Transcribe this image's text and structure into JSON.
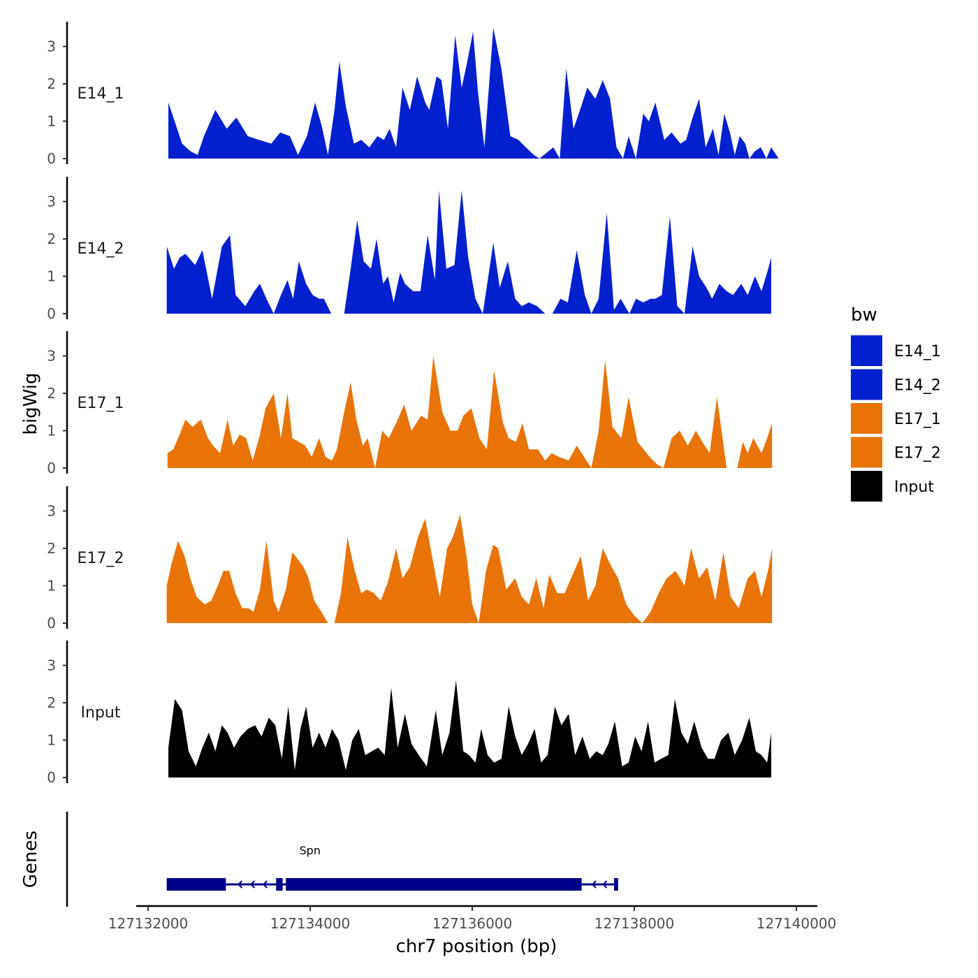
{
  "chart_data": {
    "type": "area",
    "title": "",
    "xlabel": "chr7 position (bp)",
    "ylabel": "bigWig",
    "genes_label": "Genes",
    "xlim": [
      127132000,
      127140000
    ],
    "x_ticks": [
      127132000,
      127134000,
      127136000,
      127138000,
      127140000
    ],
    "x_tick_labels": [
      "127132000",
      "127134000",
      "127136000",
      "127138000",
      "127140000"
    ],
    "ylim": [
      0,
      3.6
    ],
    "y_ticks": [
      0,
      1,
      2,
      3
    ],
    "y_tick_labels": [
      "0",
      "1",
      "2",
      "3"
    ],
    "legend": {
      "title": "bw",
      "position": "right",
      "entries": [
        {
          "label": "E14_1",
          "color": "#0320CF"
        },
        {
          "label": "E14_2",
          "color": "#0320CF"
        },
        {
          "label": "E17_1",
          "color": "#E87408"
        },
        {
          "label": "E17_2",
          "color": "#E87408"
        },
        {
          "label": "Input",
          "color": "#000000"
        }
      ]
    },
    "series": [
      {
        "name": "E14_1",
        "color": "#0320CF",
        "x": [
          127132250,
          127132420,
          127132520,
          127132610,
          127132690,
          127132830,
          127132970,
          127133090,
          127133230,
          127133370,
          127133520,
          127133630,
          127133750,
          127133850,
          127133960,
          127134060,
          127134140,
          127134220,
          127134300,
          127134360,
          127134440,
          127134540,
          127134630,
          127134730,
          127134830,
          127134910,
          127134980,
          127135060,
          127135140,
          127135230,
          127135320,
          127135420,
          127135470,
          127135560,
          127135620,
          127135700,
          127135790,
          127135870,
          127135940,
          127136010,
          127136070,
          127136150,
          127136260,
          127136360,
          127136470,
          127136570,
          127136660,
          127136760,
          127136830,
          127137000,
          127137080,
          127137160,
          127137250,
          127137330,
          127137420,
          127137520,
          127137610,
          127137700,
          127137780,
          127137860,
          127137930,
          127138020,
          127138110,
          127138180,
          127138260,
          127138370,
          127138460,
          127138570,
          127138640,
          127138720,
          127138800,
          127138880,
          127138970,
          127139040,
          127139110,
          127139180,
          127139240,
          127139300,
          127139370,
          127139420,
          127139490,
          127139560,
          127139630,
          127139690,
          127139780
        ],
        "values": [
          1.5,
          0.4,
          0.2,
          0.1,
          0.6,
          1.3,
          0.8,
          1.1,
          0.6,
          0.5,
          0.4,
          0.7,
          0.6,
          0.1,
          0.6,
          1.5,
          0.9,
          0.1,
          1.3,
          2.6,
          1.4,
          0.4,
          0.5,
          0.3,
          0.6,
          0.5,
          0.8,
          0.3,
          1.9,
          1.3,
          2.2,
          1.5,
          1.3,
          2.2,
          2.1,
          0.8,
          3.3,
          1.9,
          2.6,
          3.4,
          1.8,
          0.3,
          3.5,
          2.4,
          0.6,
          0.5,
          0.3,
          0.1,
          0.0,
          0.3,
          0.0,
          2.4,
          0.8,
          1.3,
          1.9,
          1.6,
          2.1,
          1.6,
          0.3,
          0.0,
          0.6,
          0.0,
          1.2,
          1.0,
          1.5,
          0.5,
          0.7,
          0.4,
          0.5,
          1.1,
          1.6,
          0.3,
          0.8,
          0.1,
          1.2,
          0.7,
          0.1,
          0.6,
          0.4,
          0.0,
          0.2,
          0.3,
          0.0,
          0.3,
          0.0
        ]
      },
      {
        "name": "E14_2",
        "color": "#0320CF",
        "x": [
          127132230,
          127132320,
          127132390,
          127132460,
          127132580,
          127132670,
          127132790,
          127132910,
          127133010,
          127133080,
          127133200,
          127133310,
          127133380,
          127133460,
          127133550,
          127133640,
          127133720,
          127133790,
          127133860,
          127133950,
          127134030,
          127134110,
          127134170,
          127134260,
          127134340,
          127134420,
          127134500,
          127134580,
          127134660,
          127134750,
          127134820,
          127134900,
          127134960,
          127135030,
          127135110,
          127135170,
          127135270,
          127135360,
          127135450,
          127135540,
          127135590,
          127135680,
          127135780,
          127135870,
          127135950,
          127136040,
          127136130,
          127136260,
          127136340,
          127136440,
          127136530,
          127136610,
          127136700,
          127136800,
          127136900,
          127136990,
          127137090,
          127137180,
          127137290,
          127137390,
          127137470,
          127137560,
          127137660,
          127137750,
          127137830,
          127137940,
          127138020,
          127138110,
          127138200,
          127138260,
          127138340,
          127138440,
          127138530,
          127138620,
          127138720,
          127138800,
          127138890,
          127138960,
          127139050,
          127139140,
          127139220,
          127139320,
          127139400,
          127139490,
          127139570,
          127139640,
          127139690
        ],
        "values": [
          1.8,
          1.2,
          1.5,
          1.6,
          1.3,
          1.7,
          0.4,
          1.8,
          2.1,
          0.5,
          0.2,
          0.6,
          0.8,
          0.4,
          0.0,
          0.5,
          0.9,
          0.4,
          1.4,
          0.8,
          0.5,
          0.4,
          0.4,
          0.0,
          0.0,
          0.0,
          1.2,
          2.5,
          1.4,
          1.2,
          2.0,
          0.8,
          1.0,
          0.3,
          1.1,
          0.8,
          0.6,
          0.6,
          2.1,
          0.9,
          3.3,
          1.2,
          1.3,
          3.3,
          1.5,
          0.4,
          0.0,
          1.9,
          0.7,
          1.4,
          0.4,
          0.2,
          0.3,
          0.2,
          0.0,
          0.0,
          0.4,
          0.3,
          1.7,
          0.5,
          0.0,
          0.4,
          2.7,
          0.1,
          0.4,
          0.0,
          0.4,
          0.3,
          0.4,
          0.4,
          0.5,
          2.6,
          0.2,
          0.0,
          1.8,
          1.0,
          0.7,
          0.4,
          0.8,
          0.6,
          0.5,
          0.8,
          0.5,
          1.0,
          0.6,
          1.1,
          1.5
        ]
      },
      {
        "name": "E17_1",
        "color": "#E87408",
        "x": [
          127132240,
          127132310,
          127132390,
          127132460,
          127132550,
          127132650,
          127132740,
          127132800,
          127132890,
          127132980,
          127133050,
          127133130,
          127133210,
          127133290,
          127133370,
          127133450,
          127133550,
          127133640,
          127133720,
          127133780,
          127133860,
          127133940,
          127134020,
          127134110,
          127134190,
          127134270,
          127134330,
          127134420,
          127134500,
          127134570,
          127134650,
          127134710,
          127134800,
          127134890,
          127134970,
          127135060,
          127135160,
          127135250,
          127135370,
          127135450,
          127135520,
          127135630,
          127135730,
          127135820,
          127135890,
          127135990,
          127136090,
          127136180,
          127136270,
          127136380,
          127136450,
          127136540,
          127136620,
          127136700,
          127136810,
          127136900,
          127136980,
          127137070,
          127137190,
          127137290,
          127137380,
          127137470,
          127137560,
          127137640,
          127137730,
          127137840,
          127137930,
          127138040,
          127138190,
          127138280,
          127138360,
          127138460,
          127138560,
          127138660,
          127138760,
          127138840,
          127138930,
          127139020,
          127139140,
          127139270,
          127139340,
          127139400,
          127139470,
          127139570,
          127139640,
          127139700
        ],
        "values": [
          0.4,
          0.5,
          0.9,
          1.3,
          1.1,
          1.3,
          0.8,
          0.6,
          0.4,
          1.3,
          0.6,
          0.9,
          0.8,
          0.2,
          0.8,
          1.6,
          2.0,
          0.8,
          2.0,
          0.8,
          0.7,
          0.6,
          0.3,
          0.8,
          0.3,
          0.2,
          0.5,
          1.5,
          2.3,
          1.3,
          0.6,
          0.8,
          0.0,
          1.0,
          0.8,
          1.2,
          1.7,
          1.0,
          1.4,
          1.3,
          3.0,
          1.5,
          1.0,
          1.0,
          1.4,
          1.6,
          0.8,
          0.5,
          2.6,
          1.2,
          0.8,
          0.7,
          1.2,
          0.5,
          0.5,
          0.2,
          0.4,
          0.3,
          0.2,
          0.6,
          0.3,
          0.0,
          1.0,
          2.9,
          1.1,
          0.8,
          1.9,
          0.7,
          0.3,
          0.1,
          0.0,
          0.8,
          1.0,
          0.6,
          1.0,
          0.7,
          0.4,
          1.9,
          0.0,
          0.0,
          0.7,
          0.4,
          0.8,
          0.4,
          0.8,
          1.2
        ]
      },
      {
        "name": "E17_2",
        "color": "#E87408",
        "x": [
          127132230,
          127132290,
          127132370,
          127132450,
          127132520,
          127132600,
          127132700,
          127132780,
          127132860,
          127132930,
          127133000,
          127133080,
          127133160,
          127133240,
          127133300,
          127133380,
          127133460,
          127133550,
          127133610,
          127133700,
          127133780,
          127133850,
          127133920,
          127133980,
          127134050,
          127134140,
          127134220,
          127134300,
          127134380,
          127134460,
          127134550,
          127134630,
          127134700,
          127134790,
          127134870,
          127134960,
          127135060,
          127135140,
          127135230,
          127135330,
          127135420,
          127135520,
          127135600,
          127135690,
          127135760,
          127135850,
          127135930,
          127136000,
          127136080,
          127136170,
          127136260,
          127136320,
          127136420,
          127136530,
          127136610,
          127136700,
          127136790,
          127136880,
          127136950,
          127137050,
          127137140,
          127137240,
          127137340,
          127137430,
          127137520,
          127137610,
          127137720,
          127137800,
          127137900,
          127138000,
          127138100,
          127138200,
          127138300,
          127138400,
          127138510,
          127138620,
          127138700,
          127138800,
          127138900,
          127139000,
          127139100,
          127139190,
          127139290,
          127139400,
          127139490,
          127139570,
          127139650,
          127139700
        ],
        "values": [
          1.0,
          1.6,
          2.2,
          1.8,
          1.2,
          0.7,
          0.5,
          0.6,
          1.0,
          1.4,
          1.4,
          0.8,
          0.4,
          0.4,
          0.3,
          0.9,
          2.2,
          0.6,
          0.3,
          0.9,
          1.9,
          1.7,
          1.5,
          1.2,
          0.6,
          0.3,
          0.0,
          0.0,
          0.8,
          2.3,
          1.4,
          0.8,
          0.9,
          0.8,
          0.6,
          1.1,
          2.0,
          1.2,
          1.5,
          2.3,
          2.8,
          1.6,
          0.7,
          2.0,
          2.3,
          2.9,
          1.8,
          0.5,
          0.0,
          1.4,
          2.1,
          2.0,
          0.9,
          1.2,
          0.7,
          0.5,
          1.2,
          0.4,
          1.3,
          0.8,
          0.8,
          1.3,
          1.8,
          0.6,
          1.0,
          2.0,
          1.5,
          1.2,
          0.5,
          0.2,
          0.0,
          0.3,
          0.8,
          1.2,
          1.4,
          1.0,
          2.0,
          1.2,
          1.5,
          0.6,
          1.9,
          0.7,
          0.4,
          1.2,
          1.4,
          0.7,
          1.4,
          2.0
        ]
      },
      {
        "name": "Input",
        "color": "#000000",
        "x": [
          127132250,
          127132330,
          127132420,
          127132500,
          127132590,
          127132670,
          127132750,
          127132830,
          127132910,
          127132980,
          127133060,
          127133140,
          127133230,
          127133320,
          127133400,
          127133490,
          127133570,
          127133650,
          127133730,
          127133810,
          127133880,
          127133950,
          127134030,
          127134110,
          127134190,
          127134270,
          127134350,
          127134440,
          127134520,
          127134600,
          127134680,
          127134760,
          127134840,
          127134920,
          127135000,
          127135080,
          127135170,
          127135250,
          127135340,
          127135440,
          127135550,
          127135630,
          127135720,
          127135800,
          127135890,
          127135960,
          127136040,
          127136110,
          127136190,
          127136270,
          127136360,
          127136450,
          127136530,
          127136610,
          127136690,
          127136770,
          127136850,
          127136930,
          127137020,
          127137100,
          127137190,
          127137270,
          127137360,
          127137450,
          127137530,
          127137610,
          127137680,
          127137760,
          127137850,
          127137930,
          127138010,
          127138090,
          127138170,
          127138250,
          127138330,
          127138420,
          127138500,
          127138580,
          127138660,
          127138740,
          127138830,
          127138910,
          127138990,
          127139070,
          127139160,
          127139240,
          127139330,
          127139420,
          127139500,
          127139570,
          127139640,
          127139690
        ],
        "values": [
          0.8,
          2.1,
          1.8,
          0.7,
          0.3,
          0.8,
          1.2,
          0.7,
          1.4,
          1.2,
          0.8,
          1.1,
          1.3,
          1.4,
          1.1,
          1.6,
          1.4,
          0.5,
          1.9,
          0.2,
          1.3,
          1.9,
          0.8,
          1.2,
          0.8,
          1.3,
          1.0,
          0.2,
          1.0,
          1.3,
          0.6,
          0.7,
          0.8,
          0.6,
          2.4,
          0.8,
          1.7,
          0.9,
          0.6,
          0.3,
          1.8,
          0.6,
          1.2,
          2.6,
          0.7,
          0.6,
          0.4,
          1.3,
          0.6,
          0.4,
          0.5,
          1.9,
          1.1,
          0.6,
          0.9,
          1.3,
          0.4,
          0.6,
          1.9,
          1.4,
          1.7,
          0.6,
          1.1,
          0.5,
          0.7,
          0.6,
          0.9,
          1.5,
          0.3,
          0.4,
          1.1,
          0.7,
          1.5,
          0.4,
          0.5,
          0.6,
          2.1,
          1.2,
          0.9,
          1.5,
          0.8,
          0.5,
          0.5,
          1.0,
          1.2,
          0.6,
          1.0,
          1.6,
          0.7,
          0.6,
          0.4,
          1.2
        ]
      }
    ],
    "genes": [
      {
        "name": "Spn",
        "strand": "-",
        "start": 127132230,
        "end": 127137800,
        "exons": [
          [
            127132230,
            127132960
          ],
          [
            127133580,
            127133660
          ],
          [
            127133700,
            127137350
          ],
          [
            127137750,
            127137800
          ]
        ]
      }
    ]
  }
}
